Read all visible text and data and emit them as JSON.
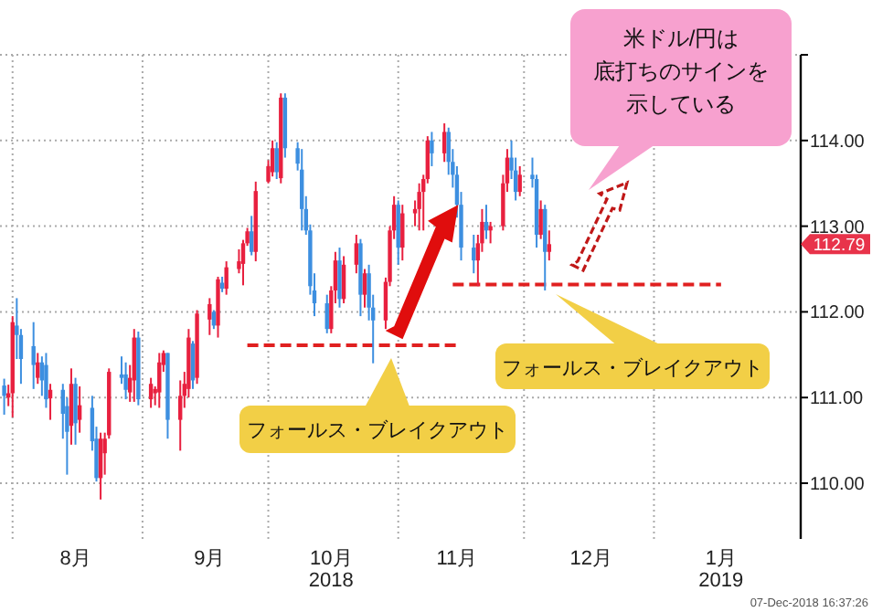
{
  "chart_data": {
    "type": "candlestick",
    "x": [
      "2018-07-30",
      "2018-07-31",
      "2018-08-01",
      "2018-08-02",
      "2018-08-03",
      "2018-08-06",
      "2018-08-07",
      "2018-08-08",
      "2018-08-09",
      "2018-08-10",
      "2018-08-13",
      "2018-08-14",
      "2018-08-15",
      "2018-08-16",
      "2018-08-17",
      "2018-08-20",
      "2018-08-21",
      "2018-08-22",
      "2018-08-23",
      "2018-08-24",
      "2018-08-27",
      "2018-08-28",
      "2018-08-29",
      "2018-08-30",
      "2018-08-31",
      "2018-09-03",
      "2018-09-04",
      "2018-09-05",
      "2018-09-06",
      "2018-09-07",
      "2018-09-10",
      "2018-09-11",
      "2018-09-12",
      "2018-09-13",
      "2018-09-14",
      "2018-09-17",
      "2018-09-18",
      "2018-09-19",
      "2018-09-20",
      "2018-09-21",
      "2018-09-24",
      "2018-09-25",
      "2018-09-26",
      "2018-09-27",
      "2018-09-28",
      "2018-10-01",
      "2018-10-02",
      "2018-10-03",
      "2018-10-04",
      "2018-10-05",
      "2018-10-08",
      "2018-10-09",
      "2018-10-10",
      "2018-10-11",
      "2018-10-12",
      "2018-10-15",
      "2018-10-16",
      "2018-10-17",
      "2018-10-18",
      "2018-10-19",
      "2018-10-22",
      "2018-10-23",
      "2018-10-24",
      "2018-10-25",
      "2018-10-26",
      "2018-10-29",
      "2018-10-30",
      "2018-10-31",
      "2018-11-01",
      "2018-11-02",
      "2018-11-05",
      "2018-11-06",
      "2018-11-07",
      "2018-11-08",
      "2018-11-09",
      "2018-11-12",
      "2018-11-13",
      "2018-11-14",
      "2018-11-15",
      "2018-11-16",
      "2018-11-19",
      "2018-11-20",
      "2018-11-21",
      "2018-11-22",
      "2018-11-23",
      "2018-11-26",
      "2018-11-27",
      "2018-11-28",
      "2018-11-29",
      "2018-11-30",
      "2018-12-03",
      "2018-12-04",
      "2018-12-05",
      "2018-12-06",
      "2018-12-07"
    ],
    "ohlc": [
      [
        111.14,
        111.22,
        110.8,
        111.02
      ],
      [
        111.0,
        111.15,
        110.9,
        111.05
      ],
      [
        111.05,
        111.95,
        110.77,
        111.88
      ],
      [
        111.84,
        112.16,
        111.45,
        111.73
      ],
      [
        111.73,
        111.8,
        111.16,
        111.45
      ],
      [
        111.6,
        111.88,
        111.1,
        111.38
      ],
      [
        111.23,
        111.52,
        111.16,
        111.41
      ],
      [
        111.41,
        111.48,
        111.02,
        111.2
      ],
      [
        111.38,
        111.52,
        110.88,
        110.98
      ],
      [
        110.99,
        111.16,
        110.74,
        111.09
      ],
      [
        111.09,
        111.16,
        110.52,
        110.81
      ],
      [
        110.9,
        111.0,
        110.1,
        110.6
      ],
      [
        110.67,
        111.34,
        110.45,
        111.16
      ],
      [
        111.16,
        111.23,
        110.45,
        110.7
      ],
      [
        110.74,
        111.13,
        110.59,
        110.91
      ],
      [
        110.88,
        111.02,
        110.38,
        110.49
      ],
      [
        110.52,
        110.66,
        110.02,
        110.06
      ],
      [
        110.06,
        110.59,
        109.81,
        110.52
      ],
      [
        110.35,
        110.59,
        110.1,
        110.52
      ],
      [
        110.56,
        111.34,
        110.52,
        111.3
      ],
      [
        111.27,
        111.48,
        111.16,
        111.23
      ],
      [
        111.27,
        111.41,
        110.98,
        111.09
      ],
      [
        111.06,
        111.38,
        110.95,
        111.23
      ],
      [
        111.2,
        111.8,
        110.95,
        111.7
      ],
      [
        111.7,
        111.77,
        110.91,
        110.98
      ],
      [
        110.98,
        111.23,
        110.88,
        111.16
      ],
      [
        111.05,
        111.13,
        110.91,
        111.1
      ],
      [
        111.06,
        111.52,
        110.88,
        111.41
      ],
      [
        111.38,
        111.55,
        111.3,
        111.52
      ],
      [
        111.52,
        111.52,
        110.52,
        110.74
      ],
      [
        110.74,
        111.2,
        110.38,
        111.02
      ],
      [
        111.02,
        111.3,
        110.88,
        111.16
      ],
      [
        111.1,
        111.8,
        111.0,
        111.7
      ],
      [
        111.63,
        111.66,
        111.1,
        111.2
      ],
      [
        111.23,
        112.02,
        111.16,
        111.98
      ],
      [
        111.91,
        112.16,
        111.73,
        112.09
      ],
      [
        112.0,
        112.02,
        111.8,
        111.84
      ],
      [
        111.84,
        112.41,
        111.7,
        112.38
      ],
      [
        112.34,
        112.41,
        112.23,
        112.27
      ],
      [
        112.27,
        112.59,
        112.2,
        112.52
      ],
      [
        112.5,
        112.73,
        112.45,
        112.59
      ],
      [
        112.56,
        112.84,
        112.31,
        112.8
      ],
      [
        112.8,
        112.98,
        112.77,
        112.94
      ],
      [
        112.94,
        113.12,
        112.66,
        112.7
      ],
      [
        112.7,
        113.52,
        112.59,
        113.41
      ],
      [
        113.52,
        113.77,
        113.5,
        113.7
      ],
      [
        113.63,
        114.0,
        113.58,
        113.91
      ],
      [
        113.91,
        113.98,
        113.55,
        113.63
      ],
      [
        113.56,
        114.55,
        113.5,
        114.5
      ],
      [
        114.5,
        114.55,
        113.8,
        113.91
      ],
      [
        113.91,
        113.98,
        113.65,
        113.73
      ],
      [
        113.66,
        113.9,
        112.95,
        113.2
      ],
      [
        113.2,
        113.35,
        112.9,
        112.95
      ],
      [
        112.95,
        113.02,
        112.2,
        112.3
      ],
      [
        112.25,
        112.45,
        111.95,
        112.1
      ],
      [
        112.1,
        112.2,
        111.75,
        111.8
      ],
      [
        111.8,
        112.3,
        111.75,
        112.25
      ],
      [
        112.25,
        112.7,
        112.1,
        112.6
      ],
      [
        112.6,
        112.75,
        112.05,
        112.15
      ],
      [
        112.15,
        112.65,
        112.1,
        112.55
      ],
      [
        112.55,
        112.9,
        112.45,
        112.8
      ],
      [
        112.8,
        112.85,
        111.95,
        112.2
      ],
      [
        112.2,
        112.5,
        112.05,
        112.45
      ],
      [
        112.45,
        112.55,
        111.9,
        112.05
      ],
      [
        112.05,
        112.2,
        111.4,
        111.9
      ],
      [
        111.9,
        112.4,
        111.8,
        112.35
      ],
      [
        112.35,
        113.0,
        112.3,
        112.95
      ],
      [
        112.95,
        113.35,
        112.85,
        113.25
      ],
      [
        113.25,
        113.3,
        112.55,
        112.75
      ],
      [
        112.75,
        113.25,
        112.6,
        113.15
      ],
      [
        113.15,
        113.3,
        113.0,
        113.2
      ],
      [
        113.2,
        113.5,
        112.95,
        113.4
      ],
      [
        113.4,
        113.6,
        112.95,
        113.55
      ],
      [
        113.55,
        114.05,
        113.5,
        114.0
      ],
      [
        114.0,
        114.1,
        113.7,
        113.85
      ],
      [
        113.85,
        114.2,
        113.75,
        114.1
      ],
      [
        114.1,
        114.15,
        113.6,
        113.75
      ],
      [
        113.75,
        113.9,
        113.45,
        113.6
      ],
      [
        113.6,
        113.7,
        113.1,
        113.25
      ],
      [
        113.25,
        113.4,
        112.6,
        112.75
      ],
      [
        112.75,
        112.9,
        112.45,
        112.6
      ],
      [
        112.6,
        112.9,
        112.3,
        112.8
      ],
      [
        112.8,
        113.2,
        112.7,
        113.05
      ],
      [
        113.05,
        113.25,
        112.85,
        112.95
      ],
      [
        112.95,
        113.05,
        112.8,
        113.0
      ],
      [
        113.0,
        113.6,
        112.95,
        113.5
      ],
      [
        113.5,
        113.9,
        113.4,
        113.8
      ],
      [
        113.8,
        114.0,
        113.55,
        113.65
      ],
      [
        113.65,
        113.8,
        113.3,
        113.4
      ],
      [
        113.4,
        113.7,
        113.35,
        113.6
      ],
      [
        113.6,
        113.8,
        113.45,
        113.55
      ],
      [
        113.55,
        113.6,
        112.75,
        112.9
      ],
      [
        112.9,
        113.3,
        112.85,
        113.2
      ],
      [
        113.2,
        113.25,
        112.25,
        112.7
      ],
      [
        112.7,
        112.95,
        112.6,
        112.79
      ]
    ],
    "colors": [
      "#3d8fe0",
      "#e8203f",
      "#e8203f",
      "#3d8fe0",
      "#3d8fe0",
      "#3d8fe0",
      "#e8203f",
      "#3d8fe0",
      "#3d8fe0",
      "#e8203f",
      "#3d8fe0",
      "#3d8fe0",
      "#e8203f",
      "#3d8fe0",
      "#e8203f",
      "#3d8fe0",
      "#3d8fe0",
      "#e8203f",
      "#e8203f",
      "#e8203f",
      "#3d8fe0",
      "#3d8fe0",
      "#e8203f",
      "#e8203f",
      "#3d8fe0",
      "#e8203f",
      "#e8203f",
      "#e8203f",
      "#e8203f",
      "#3d8fe0",
      "#e8203f",
      "#e8203f",
      "#e8203f",
      "#3d8fe0",
      "#e8203f",
      "#e8203f",
      "#3d8fe0",
      "#e8203f",
      "#3d8fe0",
      "#e8203f",
      "#e8203f",
      "#e8203f",
      "#e8203f",
      "#3d8fe0",
      "#e8203f",
      "#e8203f",
      "#e8203f",
      "#3d8fe0",
      "#e8203f",
      "#3d8fe0",
      "#3d8fe0",
      "#3d8fe0",
      "#3d8fe0",
      "#3d8fe0",
      "#3d8fe0",
      "#3d8fe0",
      "#e8203f",
      "#e8203f",
      "#3d8fe0",
      "#e8203f",
      "#e8203f",
      "#3d8fe0",
      "#e8203f",
      "#3d8fe0",
      "#3d8fe0",
      "#e8203f",
      "#e8203f",
      "#e8203f",
      "#3d8fe0",
      "#e8203f",
      "#e8203f",
      "#e8203f",
      "#e8203f",
      "#e8203f",
      "#3d8fe0",
      "#e8203f",
      "#3d8fe0",
      "#3d8fe0",
      "#3d8fe0",
      "#3d8fe0",
      "#3d8fe0",
      "#e8203f",
      "#e8203f",
      "#3d8fe0",
      "#e8203f",
      "#e8203f",
      "#e8203f",
      "#3d8fe0",
      "#3d8fe0",
      "#e8203f",
      "#3d8fe0",
      "#3d8fe0",
      "#e8203f",
      "#3d8fe0",
      "#e8203f"
    ],
    "series": [
      {
        "type": "line",
        "x": [
          "2018-09-26",
          "2018-11-16"
        ],
        "values": [
          111.61,
          111.61
        ],
        "color": "#e02020",
        "line_style": "dashed"
      },
      {
        "type": "line",
        "x": [
          "2018-11-14",
          "2019-01-17"
        ],
        "values": [
          112.32,
          112.32
        ],
        "color": "#e02020",
        "line_style": "dashed"
      }
    ],
    "xlim": [
      "2018-07-29",
      "2019-02-05"
    ],
    "xticks": [
      {
        "value": "2018-08-01",
        "label": null
      },
      {
        "value": "2018-09-01",
        "label": null
      },
      {
        "value": "2018-10-01",
        "label": null
      },
      {
        "value": "2018-11-01",
        "label": null
      },
      {
        "value": "2018-12-01",
        "label": null
      },
      {
        "value": "2019-01-01",
        "label": null
      },
      {
        "value": "2018-08-16",
        "label": "8月"
      },
      {
        "value": "2018-09-17",
        "label": "9月"
      },
      {
        "value": "2018-10-16",
        "label": "10月\n2018"
      },
      {
        "value": "2018-11-15",
        "label": "11月"
      },
      {
        "value": "2018-12-17",
        "label": "12月"
      },
      {
        "value": "2019-01-17",
        "label": "1月\n2019"
      }
    ],
    "ylim": [
      109.35,
      115.0
    ],
    "yticks": [
      {
        "value": 110,
        "label": "110.00"
      },
      {
        "value": 111,
        "label": "111.00"
      },
      {
        "value": 112,
        "label": "112.00"
      },
      {
        "value": 113,
        "label": "113.00"
      },
      {
        "value": 114,
        "label": "114.00"
      },
      {
        "value": 115,
        "label": null
      }
    ],
    "annotations": [
      "米ドル/円は",
      "底打ちのサインを",
      "示している",
      "フォールス・ブレイクアウト",
      "フォールス・ブレイクアウト",
      "07-Dec-2018 16:37:26",
      "112.79"
    ],
    "grid": true
  }
}
